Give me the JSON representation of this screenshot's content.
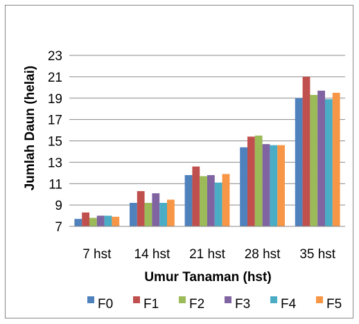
{
  "chart_data": {
    "type": "bar",
    "title": "",
    "xlabel": "Umur Tanaman (hst)",
    "ylabel": "Jumlah Daun (helai)",
    "ylim": [
      7,
      23
    ],
    "yticks": [
      7,
      9,
      11,
      13,
      15,
      17,
      19,
      21,
      23
    ],
    "grid": true,
    "legend_position": "bottom",
    "categories": [
      "7 hst",
      "14 hst",
      "21 hst",
      "28 hst",
      "35 hst"
    ],
    "series": [
      {
        "name": "F0",
        "color": "#4F81BD",
        "values": [
          7.7,
          9.2,
          11.8,
          14.4,
          19.0
        ]
      },
      {
        "name": "F1",
        "color": "#C0504D",
        "values": [
          8.3,
          10.3,
          12.6,
          15.4,
          21.0
        ]
      },
      {
        "name": "F2",
        "color": "#9BBB59",
        "values": [
          7.8,
          9.2,
          11.7,
          15.5,
          19.3
        ]
      },
      {
        "name": "F3",
        "color": "#8064A2",
        "values": [
          8.0,
          10.1,
          11.8,
          14.7,
          19.7
        ]
      },
      {
        "name": "F4",
        "color": "#4BACC6",
        "values": [
          8.0,
          9.2,
          11.1,
          14.6,
          18.9
        ]
      },
      {
        "name": "F5",
        "color": "#F79646",
        "values": [
          7.9,
          9.5,
          11.9,
          14.6,
          19.5
        ]
      }
    ]
  }
}
